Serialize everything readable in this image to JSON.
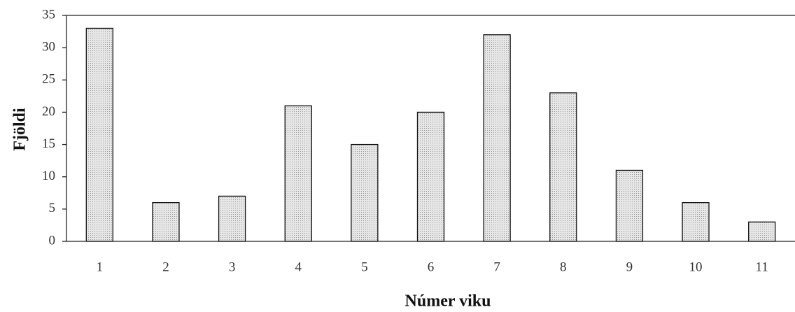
{
  "chart_data": {
    "type": "bar",
    "x_label": "Númer viku",
    "y_label": "Fjöldi",
    "categories": [
      "1",
      "2",
      "3",
      "4",
      "5",
      "6",
      "7",
      "8",
      "9",
      "10",
      "11"
    ],
    "values": [
      33,
      6,
      7,
      21,
      15,
      20,
      32,
      23,
      11,
      6,
      3
    ],
    "color": "#dcdcdc",
    "ylim": [
      0,
      35
    ],
    "yticks": [
      0,
      5,
      10,
      15,
      20,
      25,
      30,
      35
    ],
    "grid": false
  }
}
